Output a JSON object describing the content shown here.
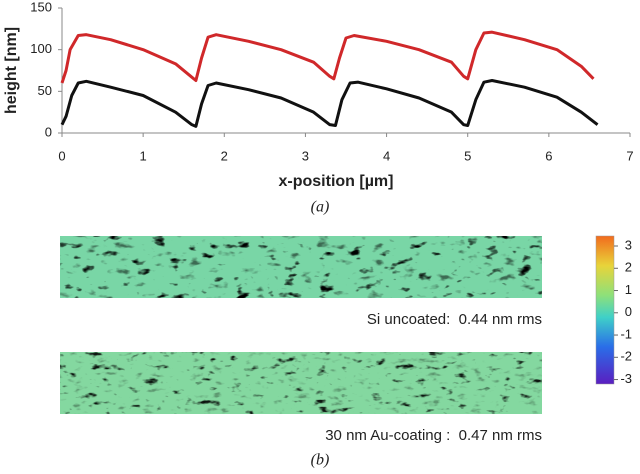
{
  "chart_data": {
    "type": "line",
    "x_label": "x-position [µm]",
    "y_label": "height [nm]",
    "xlim": [
      0,
      7
    ],
    "xticks": [
      0,
      1,
      2,
      3,
      4,
      5,
      6,
      7
    ],
    "ylim": [
      0,
      150
    ],
    "yticks": [
      0,
      50,
      100,
      150
    ],
    "series": [
      {
        "color": "#d0282a",
        "x": [
          0,
          0.05,
          0.1,
          0.2,
          0.3,
          0.6,
          1.0,
          1.4,
          1.6,
          1.65,
          1.72,
          1.8,
          1.9,
          2.3,
          2.7,
          3.1,
          3.3,
          3.35,
          3.42,
          3.5,
          3.6,
          4.0,
          4.4,
          4.8,
          4.95,
          5.0,
          5.1,
          5.2,
          5.3,
          5.7,
          6.1,
          6.4,
          6.55
        ],
        "values": [
          60,
          75,
          100,
          117,
          118,
          112,
          100,
          83,
          67,
          63,
          90,
          115,
          118,
          110,
          100,
          85,
          68,
          65,
          90,
          114,
          117,
          110,
          100,
          85,
          68,
          65,
          100,
          120,
          121,
          112,
          100,
          80,
          65
        ]
      },
      {
        "color": "#111111",
        "x": [
          0,
          0.05,
          0.12,
          0.2,
          0.3,
          0.6,
          1.0,
          1.4,
          1.6,
          1.65,
          1.72,
          1.8,
          1.9,
          2.3,
          2.7,
          3.1,
          3.3,
          3.37,
          3.45,
          3.55,
          3.65,
          4.0,
          4.4,
          4.8,
          4.95,
          5.0,
          5.1,
          5.2,
          5.3,
          5.7,
          6.1,
          6.4,
          6.6
        ],
        "values": [
          10,
          20,
          45,
          60,
          62,
          55,
          45,
          25,
          10,
          8,
          35,
          57,
          60,
          52,
          42,
          25,
          10,
          9,
          40,
          60,
          61,
          53,
          42,
          25,
          10,
          9,
          40,
          61,
          63,
          55,
          43,
          25,
          10
        ]
      }
    ]
  },
  "panel_a_label": "(a)",
  "panel_b": {
    "label": "(b)",
    "images": [
      {
        "caption": "Si uncoated:  0.44 nm rms"
      },
      {
        "caption": "30 nm Au-coating :  0.47 nm rms"
      }
    ],
    "colorbar": {
      "lim": [
        -3.2,
        3.45
      ],
      "ticks": [
        3,
        2,
        1,
        0,
        -1,
        -2,
        -3
      ]
    }
  }
}
